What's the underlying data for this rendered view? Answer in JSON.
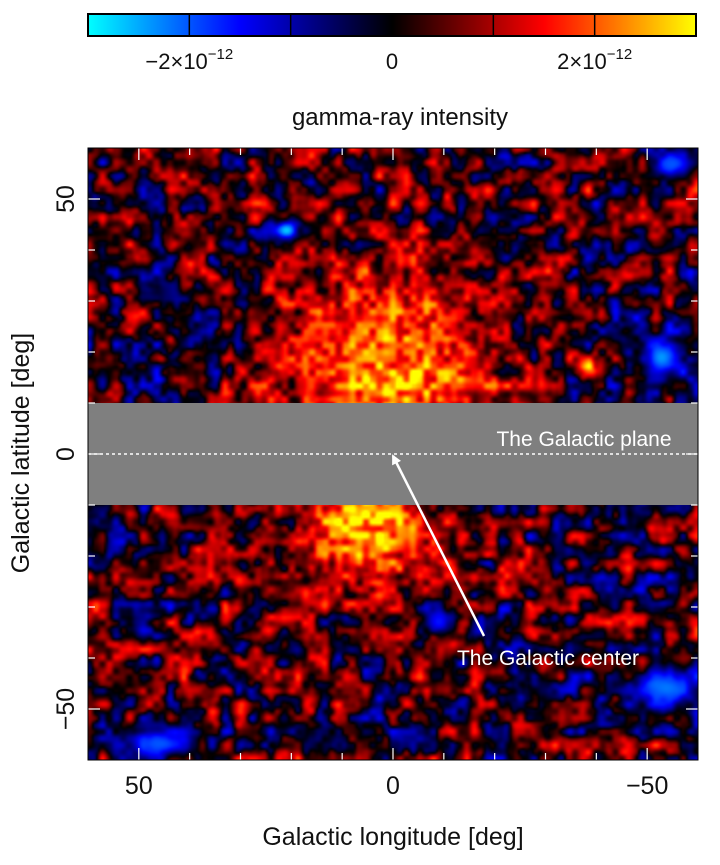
{
  "chart_data": {
    "type": "heatmap",
    "title": "",
    "xlabel": "Galactic longitude [deg]",
    "ylabel": "Galactic latitude [deg]",
    "xlim": [
      60,
      -60
    ],
    "ylim": [
      -60,
      60
    ],
    "x_ticks": [
      {
        "value": 50,
        "label": "50"
      },
      {
        "value": 0,
        "label": "0"
      },
      {
        "value": -50,
        "label": "−50"
      }
    ],
    "y_ticks": [
      {
        "value": 50,
        "label": "50"
      },
      {
        "value": 0,
        "label": "0"
      },
      {
        "value": -50,
        "label": "−50"
      }
    ],
    "colorbar": {
      "label": "gamma-ray intensity",
      "range": [
        -3e-12,
        3e-12
      ],
      "ticks": [
        {
          "value": -2e-12,
          "label": "−2×10",
          "exponent": "−12"
        },
        {
          "value": 0,
          "label": "0",
          "exponent": ""
        },
        {
          "value": 2e-12,
          "label": "2×10",
          "exponent": "−12"
        }
      ],
      "colors": [
        "#00ffff",
        "#0000ff",
        "#000000",
        "#ff0000",
        "#ffff00"
      ]
    },
    "masked_band": {
      "b_min": -10,
      "b_max": 10,
      "color": "#7f7f7f"
    },
    "intensity_features": [
      {
        "name": "northern bubble",
        "l": 2,
        "b": 22,
        "sigma_l": 14,
        "sigma_b": 11,
        "value": 2.1e-12
      },
      {
        "name": "bright north arc",
        "l": 0,
        "b": 13,
        "sigma_l": 9,
        "sigma_b": 4,
        "value": 2.6e-12
      },
      {
        "name": "southern bubble",
        "l": 5,
        "b": -16,
        "sigma_l": 10,
        "sigma_b": 7,
        "value": 2.3e-12
      },
      {
        "name": "bright south knot",
        "l": 6,
        "b": -13,
        "sigma_l": 5,
        "sigma_b": 3,
        "value": 2.7e-12
      },
      {
        "name": "north-west blue source",
        "l": 21,
        "b": 44,
        "sigma_l": 2,
        "sigma_b": 1.5,
        "value": -2.7e-12
      },
      {
        "name": "north-east blue patch",
        "l": -53,
        "b": 19,
        "sigma_l": 3,
        "sigma_b": 3,
        "value": -2.4e-12
      },
      {
        "name": "north-east red point",
        "l": -39,
        "b": 17,
        "sigma_l": 1.5,
        "sigma_b": 1.5,
        "value": 2.8e-12
      },
      {
        "name": "south-east blue patch",
        "l": -54,
        "b": -46,
        "sigma_l": 5,
        "sigma_b": 3,
        "value": -2.2e-12
      },
      {
        "name": "south-west blue patch",
        "l": 46,
        "b": -57,
        "sigma_l": 5,
        "sigma_b": 2,
        "value": -2e-12
      },
      {
        "name": "south blue spot",
        "l": -9,
        "b": -33,
        "sigma_l": 2,
        "sigma_b": 2,
        "value": -1.6e-12
      },
      {
        "name": "north-east top blue spot",
        "l": -55,
        "b": 57,
        "sigma_l": 3,
        "sigma_b": 2,
        "value": -2e-12
      }
    ],
    "annotations": [
      {
        "text": "The Galactic plane",
        "l": -20,
        "b": 3,
        "style": "dashed line at b = 0"
      },
      {
        "text": "The Galactic center",
        "l": 0,
        "b": 0,
        "label_l": -10,
        "label_b": -40,
        "style": "arrow"
      }
    ],
    "grid": false
  }
}
